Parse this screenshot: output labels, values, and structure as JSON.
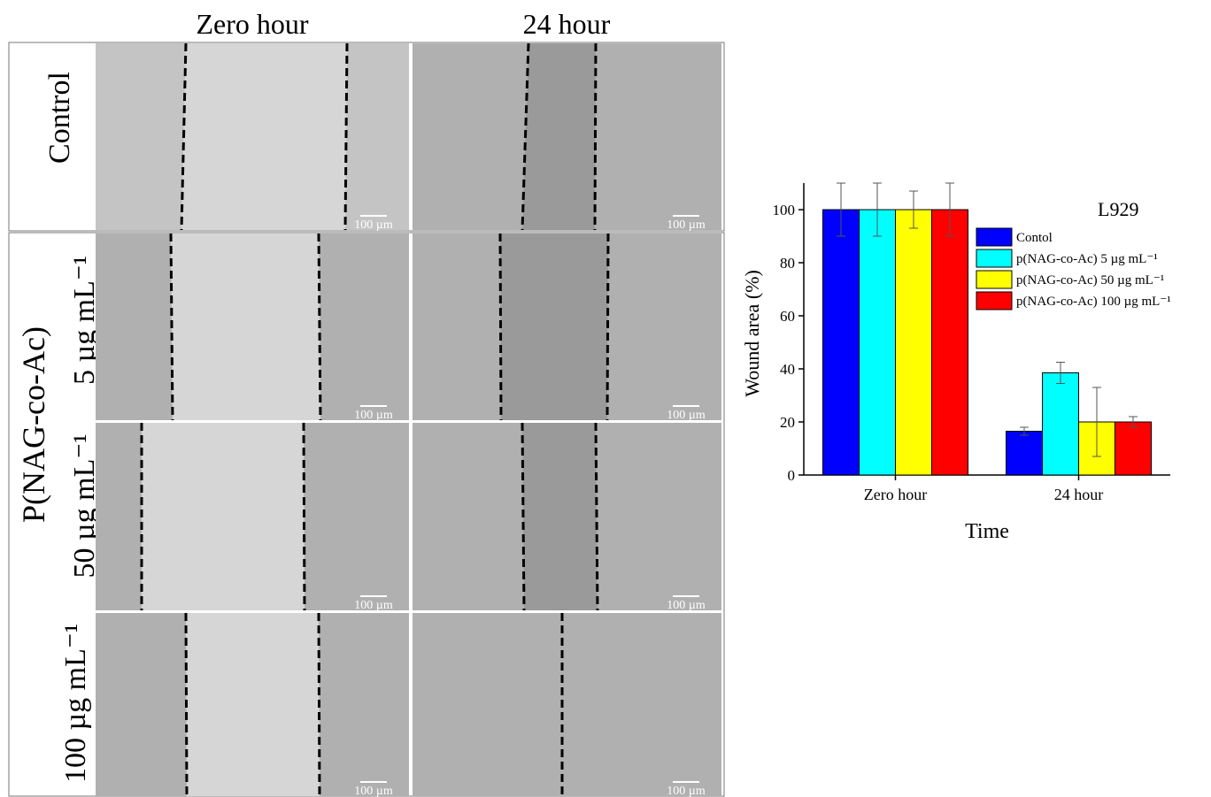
{
  "panel": {
    "column_headers": [
      "Zero hour",
      "24 hour"
    ],
    "row_labels": [
      "Control",
      "5 µg mL⁻¹",
      "50 µg mL⁻¹",
      "100 µg mL⁻¹"
    ],
    "group_label": "P(NAG-co-Ac)",
    "scale_bar": "100 µm"
  },
  "chart_data": {
    "type": "bar",
    "annotation": "L929",
    "xlabel": "Time",
    "ylabel": "Wound area (%)",
    "categories": [
      "Zero hour",
      "24 hour"
    ],
    "series": [
      {
        "name": "Contol",
        "color": "#0000ff",
        "values": [
          100,
          16.5
        ],
        "errors": [
          10,
          1.5
        ]
      },
      {
        "name": "p(NAG-co-Ac) 5 µg mL⁻¹",
        "color": "#00ffff",
        "values": [
          100,
          38.5
        ],
        "errors": [
          10,
          4
        ]
      },
      {
        "name": "p(NAG-co-Ac) 50 µg mL⁻¹",
        "color": "#ffff00",
        "values": [
          100,
          20
        ],
        "errors": [
          7,
          13
        ]
      },
      {
        "name": "p(NAG-co-Ac) 100 µg mL⁻¹",
        "color": "#ff0000",
        "values": [
          100,
          20
        ],
        "errors": [
          10,
          2
        ]
      }
    ],
    "ylim": [
      0,
      110
    ],
    "yticks": [
      0,
      20,
      40,
      60,
      80,
      100
    ],
    "grid": false,
    "legend": "upper right"
  }
}
